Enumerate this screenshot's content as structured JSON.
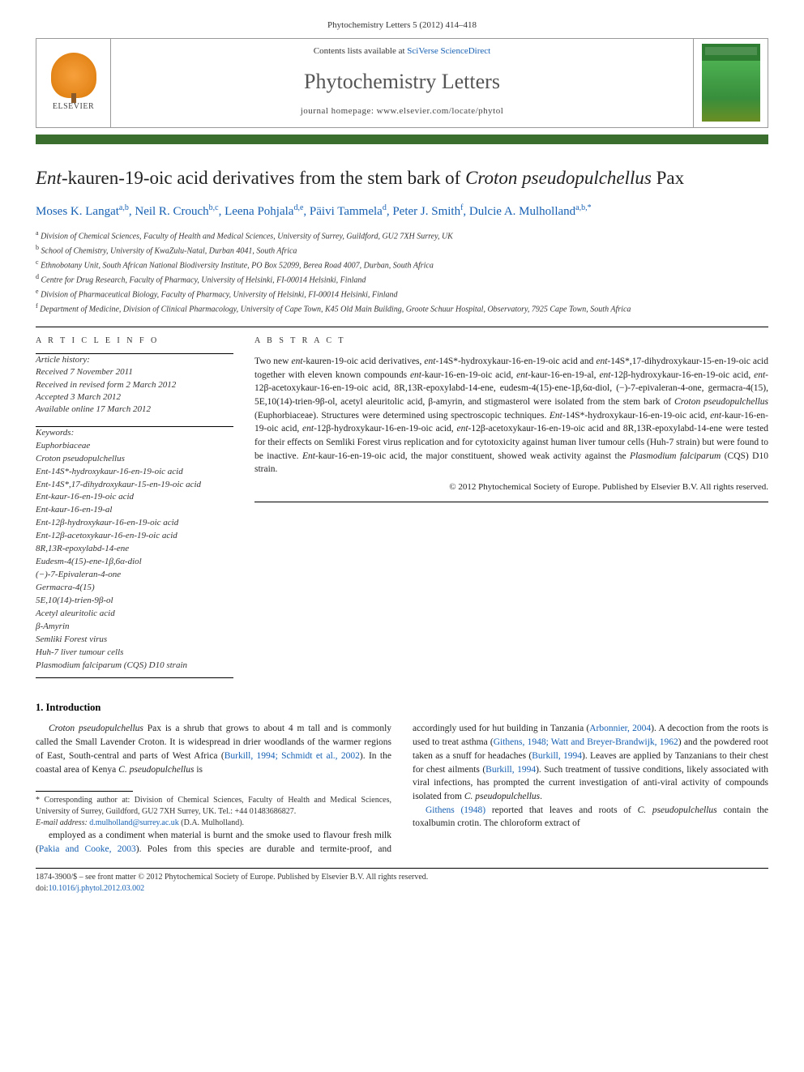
{
  "colors": {
    "accent_bar": "#3a6e2e",
    "link": "#1660b3",
    "text": "#222222",
    "muted": "#333333",
    "border": "#999999"
  },
  "header": {
    "journal_ref": "Phytochemistry Letters 5 (2012) 414–418",
    "contents_line_prefix": "Contents lists available at ",
    "contents_link": "SciVerse ScienceDirect",
    "journal_title": "Phytochemistry Letters",
    "homepage_prefix": "journal homepage: ",
    "homepage_url": "www.elsevier.com/locate/phytol",
    "elsevier_label": "ELSEVIER"
  },
  "article": {
    "title_pre": "Ent",
    "title_mid": "-kauren-19-oic acid derivatives from the stem bark of ",
    "title_ital": "Croton pseudopulchellus",
    "title_post": " Pax",
    "authors_html": "Moses K. Langat<sup>a,b</sup>, Neil R. Crouch<sup>b,c</sup>, Leena Pohjala<sup>d,e</sup>, Päivi Tammela<sup>d</sup>, Peter J. Smith<sup>f</sup>, Dulcie A. Mulholland<sup>a,b,*</sup>",
    "affils": [
      "Division of Chemical Sciences, Faculty of Health and Medical Sciences, University of Surrey, Guildford, GU2 7XH Surrey, UK",
      "School of Chemistry, University of KwaZulu-Natal, Durban 4041, South Africa",
      "Ethnobotany Unit, South African National Biodiversity Institute, PO Box 52099, Berea Road 4007, Durban, South Africa",
      "Centre for Drug Research, Faculty of Pharmacy, University of Helsinki, FI-00014 Helsinki, Finland",
      "Division of Pharmaceutical Biology, Faculty of Pharmacy, University of Helsinki, FI-00014 Helsinki, Finland",
      "Department of Medicine, Division of Clinical Pharmacology, University of Cape Town, K45 Old Main Building, Groote Schuur Hospital, Observatory, 7925 Cape Town, South Africa"
    ],
    "affil_sups": [
      "a",
      "b",
      "c",
      "d",
      "e",
      "f"
    ]
  },
  "info": {
    "label": "A R T I C L E   I N F O",
    "history_label": "Article history:",
    "history": [
      "Received 7 November 2011",
      "Received in revised form 2 March 2012",
      "Accepted 3 March 2012",
      "Available online 17 March 2012"
    ],
    "keywords_label": "Keywords:",
    "keywords": [
      "Euphorbiaceae",
      "Croton pseudopulchellus",
      "Ent-14S*-hydroxykaur-16-en-19-oic acid",
      "Ent-14S*,17-dihydroxykaur-15-en-19-oic acid",
      "Ent-kaur-16-en-19-oic acid",
      "Ent-kaur-16-en-19-al",
      "Ent-12β-hydroxykaur-16-en-19-oic acid",
      "Ent-12β-acetoxykaur-16-en-19-oic acid",
      "8R,13R-epoxylabd-14-ene",
      "Eudesm-4(15)-ene-1β,6α-diol",
      "(−)-7-Epivaleran-4-one",
      "Germacra-4(15)",
      "5E,10(14)-trien-9β-ol",
      "Acetyl aleuritolic acid",
      "β-Amyrin",
      "Semliki Forest virus",
      "Huh-7 liver tumour cells",
      "Plasmodium falciparum (CQS) D10 strain"
    ]
  },
  "abstract": {
    "label": "A B S T R A C T",
    "text": "Two new ent-kauren-19-oic acid derivatives, ent-14S*-hydroxykaur-16-en-19-oic acid and ent-14S*,17-dihydroxykaur-15-en-19-oic acid together with eleven known compounds ent-kaur-16-en-19-oic acid, ent-kaur-16-en-19-al, ent-12β-hydroxykaur-16-en-19-oic acid, ent-12β-acetoxykaur-16-en-19-oic acid, 8R,13R-epoxylabd-14-ene, eudesm-4(15)-ene-1β,6α-diol, (−)-7-epivaleran-4-one, germacra-4(15), 5E,10(14)-trien-9β-ol, acetyl aleuritolic acid, β-amyrin, and stigmasterol were isolated from the stem bark of Croton pseudopulchellus (Euphorbiaceae). Structures were determined using spectroscopic techniques. Ent-14S*-hydroxykaur-16-en-19-oic acid, ent-kaur-16-en-19-oic acid, ent-12β-hydroxykaur-16-en-19-oic acid, ent-12β-acetoxykaur-16-en-19-oic acid and 8R,13R-epoxylabd-14-ene were tested for their effects on Semliki Forest virus replication and for cytotoxicity against human liver tumour cells (Huh-7 strain) but were found to be inactive. Ent-kaur-16-en-19-oic acid, the major constituent, showed weak activity against the Plasmodium falciparum (CQS) D10 strain.",
    "copyright": "© 2012 Phytochemical Society of Europe. Published by Elsevier B.V. All rights reserved."
  },
  "intro": {
    "heading": "1. Introduction",
    "p1": "Croton pseudopulchellus Pax is a shrub that grows to about 4 m tall and is commonly called the Small Lavender Croton. It is widespread in drier woodlands of the warmer regions of East, South-central and parts of West Africa (Burkill, 1994; Schmidt et al., 2002). In the coastal area of Kenya C. pseudopulchellus is",
    "p2": "employed as a condiment when material is burnt and the smoke used to flavour fresh milk (Pakia and Cooke, 2003). Poles from this species are durable and termite-proof, and accordingly used for hut building in Tanzania (Arbonnier, 2004). A decoction from the roots is used to treat asthma (Githens, 1948; Watt and Breyer-Brandwijk, 1962) and the powdered root taken as a snuff for headaches (Burkill, 1994). Leaves are applied by Tanzanians to their chest for chest ailments (Burkill, 1994). Such treatment of tussive conditions, likely associated with viral infections, has prompted the current investigation of anti-viral activity of compounds isolated from C. pseudopulchellus.",
    "p3": "Githens (1948) reported that leaves and roots of C. pseudopulchellus contain the toxalbumin crotin. The chloroform extract of"
  },
  "footnote": {
    "corr": "* Corresponding author at: Division of Chemical Sciences, Faculty of Health and Medical Sciences, University of Surrey, Guildford, GU2 7XH Surrey, UK. Tel.: +44 01483686827.",
    "email_label": "E-mail address:",
    "email": "d.mulholland@surrey.ac.uk",
    "email_suffix": "(D.A. Mulholland)."
  },
  "footer": {
    "issn_line": "1874-3900/$ – see front matter © 2012 Phytochemical Society of Europe. Published by Elsevier B.V. All rights reserved.",
    "doi_prefix": "doi:",
    "doi": "10.1016/j.phytol.2012.03.002"
  }
}
